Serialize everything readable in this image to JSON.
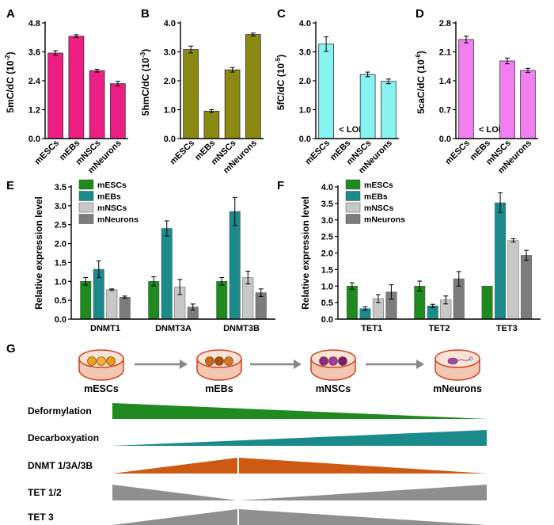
{
  "panels_top": [
    {
      "label": "A",
      "ylabel": "5mC/dC (10",
      "ylabel_exp": "-2",
      "ylim": [
        0,
        4.8
      ],
      "ticks": [
        "0.0",
        "1.2",
        "2.4",
        "3.6",
        "4.8"
      ],
      "color": "#ee1f84",
      "categories": [
        "mESCs",
        "mEBs",
        "mNSCs",
        "mNeurons"
      ],
      "values": [
        3.55,
        4.25,
        2.82,
        2.28
      ],
      "errors": [
        0.1,
        0.06,
        0.06,
        0.1
      ],
      "note": ""
    },
    {
      "label": "B",
      "ylabel": "5hmC/dC (10",
      "ylabel_exp": "-3",
      "ylim": [
        0,
        4.0
      ],
      "ticks": [
        "0.0",
        "1.0",
        "2.0",
        "3.0",
        "4.0"
      ],
      "color": "#8a8a12",
      "categories": [
        "mESCs",
        "mEBs",
        "mNSCs",
        "mNeurons"
      ],
      "values": [
        3.08,
        0.95,
        2.38,
        3.6
      ],
      "errors": [
        0.12,
        0.05,
        0.08,
        0.05
      ],
      "note": ""
    },
    {
      "label": "C",
      "ylabel": "5fC/dC (10",
      "ylabel_exp": "-5",
      "ylim": [
        0,
        4.0
      ],
      "ticks": [
        "0.0",
        "1.0",
        "2.0",
        "3.0",
        "4.0"
      ],
      "color": "#86f3f0",
      "categories": [
        "mESCs",
        "mEBs",
        "mNSCs",
        "mNeurons"
      ],
      "values": [
        3.27,
        null,
        2.22,
        1.98
      ],
      "errors": [
        0.25,
        0,
        0.08,
        0.08
      ],
      "note": "< LOD"
    },
    {
      "label": "D",
      "ylabel": "5caC/dC (10",
      "ylabel_exp": "-6",
      "ylim": [
        0,
        2.8
      ],
      "ticks": [
        "0.0",
        "0.7",
        "1.4",
        "2.1",
        "2.8"
      ],
      "color": "#f27ef2",
      "categories": [
        "mESCs",
        "mEBs",
        "mNSCs",
        "mNeurons"
      ],
      "values": [
        2.4,
        null,
        1.88,
        1.65
      ],
      "errors": [
        0.08,
        0,
        0.07,
        0.05
      ],
      "note": "< LOD"
    }
  ],
  "panels_mid": [
    {
      "label": "E",
      "ylabel": "Relative expression level",
      "ylim": [
        0,
        3.5
      ],
      "ticks": [
        "0.0",
        "0.5",
        "1.0",
        "1.5",
        "2.0",
        "2.5",
        "3.0",
        "3.5"
      ],
      "groups": [
        "DNMT1",
        "DNMT3A",
        "DNMT3B"
      ],
      "series": [
        {
          "name": "mESCs",
          "color": "#1f8a1f",
          "values": [
            1.0,
            1.0,
            1.0
          ],
          "errors": [
            0.1,
            0.12,
            0.1
          ]
        },
        {
          "name": "mEBs",
          "color": "#1a8a8a",
          "values": [
            1.32,
            2.4,
            2.85
          ],
          "errors": [
            0.22,
            0.2,
            0.37
          ]
        },
        {
          "name": "mNSCs",
          "color": "#c8c8c8",
          "values": [
            0.78,
            0.85,
            1.1
          ],
          "errors": [
            0.02,
            0.2,
            0.17
          ]
        },
        {
          "name": "mNeurons",
          "color": "#7c7c7c",
          "values": [
            0.58,
            0.32,
            0.7
          ],
          "errors": [
            0.03,
            0.08,
            0.1
          ]
        }
      ]
    },
    {
      "label": "F",
      "ylabel": "Relative expression level",
      "ylim": [
        0,
        4.0
      ],
      "ticks": [
        "0.0",
        "0.5",
        "1.0",
        "1.5",
        "2.0",
        "2.5",
        "3.0",
        "3.5",
        "4.0"
      ],
      "groups": [
        "TET1",
        "TET2",
        "TET3"
      ],
      "series": [
        {
          "name": "mESCs",
          "color": "#1f8a1f",
          "values": [
            1.0,
            1.0,
            1.0
          ],
          "errors": [
            0.1,
            0.15,
            0.0
          ]
        },
        {
          "name": "mEBs",
          "color": "#1a8a8a",
          "values": [
            0.32,
            0.4,
            3.52
          ],
          "errors": [
            0.05,
            0.05,
            0.3
          ]
        },
        {
          "name": "mNSCs",
          "color": "#c8c8c8",
          "values": [
            0.62,
            0.58,
            2.38
          ],
          "errors": [
            0.12,
            0.12,
            0.05
          ]
        },
        {
          "name": "mNeurons",
          "color": "#7c7c7c",
          "values": [
            0.82,
            1.22,
            1.93
          ],
          "errors": [
            0.22,
            0.22,
            0.15
          ]
        }
      ]
    }
  ],
  "panel_g": {
    "label": "G",
    "stages": [
      "mESCs",
      "mEBs",
      "mNSCs",
      "mNeurons"
    ],
    "rows": [
      {
        "name": "Deformylation",
        "color": "#1f8a1f",
        "shape": "decreasing"
      },
      {
        "name": "Decarboxyation",
        "color": "#1a8a8a",
        "shape": "increasing"
      },
      {
        "name": "DNMT 1/3A/3B",
        "color": "#cc5a12",
        "shape": "peak"
      },
      {
        "name": "TET 1/2",
        "color": "#8f8f8f",
        "shape": "valley"
      },
      {
        "name": "TET 3",
        "color": "#8f8f8f",
        "shape": "peak"
      }
    ]
  }
}
